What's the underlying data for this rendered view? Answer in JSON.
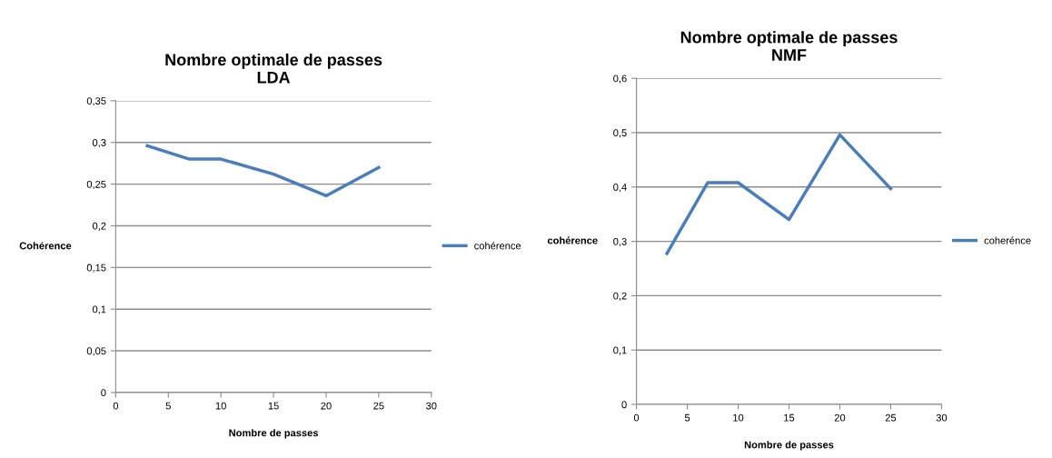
{
  "chart_data": [
    {
      "type": "line",
      "title": "Nombre optimale de passes\nLDA",
      "xlabel": "Nombre de passes",
      "ylabel": "Cohérence",
      "x": [
        3,
        7,
        10,
        15,
        20,
        25
      ],
      "series": [
        {
          "name": "cohérence",
          "color": "#4a7ebb",
          "values": [
            0.296,
            0.28,
            0.28,
            0.262,
            0.236,
            0.27
          ]
        }
      ],
      "xlim": [
        0,
        30
      ],
      "xticks": [
        0,
        5,
        10,
        15,
        20,
        25,
        30
      ],
      "ylim": [
        0,
        0.35
      ],
      "yticks": [
        0,
        {
          "value": 0.05,
          "label": "0,05"
        },
        {
          "value": 0.1,
          "label": "0,1"
        },
        {
          "value": 0.15,
          "label": "0,15"
        },
        {
          "value": 0.2,
          "label": "0,2"
        },
        {
          "value": 0.25,
          "label": "0,25"
        },
        {
          "value": 0.3,
          "label": "0,3"
        },
        {
          "value": 0.35,
          "label": "0,35"
        }
      ],
      "grid": "y",
      "legend": "right",
      "marker": "none",
      "line_style": "solid"
    },
    {
      "type": "line",
      "title": "Nombre optimale de passes\nNMF",
      "xlabel": "Nombre de passes",
      "ylabel": "cohérence",
      "x": [
        3,
        7,
        10,
        15,
        20,
        25
      ],
      "series": [
        {
          "name": "coherénce",
          "color": "#4a7ebb",
          "values": [
            0.278,
            0.408,
            0.408,
            0.34,
            0.496,
            0.397
          ]
        }
      ],
      "xlim": [
        0,
        30
      ],
      "xticks": [
        0,
        5,
        10,
        15,
        20,
        25,
        30
      ],
      "ylim": [
        0,
        0.6
      ],
      "yticks": [
        0,
        {
          "value": 0.1,
          "label": "0,1"
        },
        {
          "value": 0.2,
          "label": "0,2"
        },
        {
          "value": 0.3,
          "label": "0,3"
        },
        {
          "value": 0.4,
          "label": "0,4"
        },
        {
          "value": 0.5,
          "label": "0,5"
        },
        {
          "value": 0.6,
          "label": "0,6"
        }
      ],
      "grid": "y",
      "legend": "right",
      "marker": "none",
      "line_style": "solid"
    }
  ]
}
